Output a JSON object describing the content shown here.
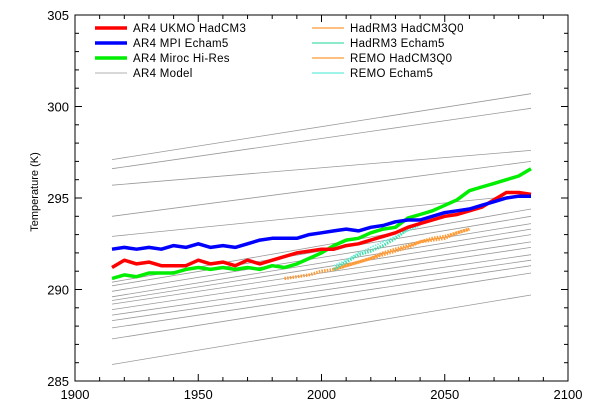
{
  "chart_data": {
    "type": "line",
    "title": "",
    "xlabel": "",
    "ylabel": "Temperature (K)",
    "xlim": [
      1900,
      2100
    ],
    "ylim": [
      285,
      305
    ],
    "xticks": [
      1900,
      1950,
      2000,
      2050,
      2100
    ],
    "yticks": [
      285,
      290,
      295,
      300,
      305
    ],
    "grid": false,
    "legend_position": "top-left, two columns inside plot",
    "series": [
      {
        "name": "AR4 UKMO HadCM3",
        "color": "#ff0000",
        "style": "solid-thick",
        "x": [
          1915,
          1920,
          1925,
          1930,
          1935,
          1940,
          1945,
          1950,
          1955,
          1960,
          1965,
          1970,
          1975,
          1980,
          1985,
          1990,
          1995,
          2000,
          2005,
          2010,
          2015,
          2020,
          2025,
          2030,
          2035,
          2040,
          2045,
          2050,
          2055,
          2060,
          2065,
          2070,
          2075,
          2080,
          2085
        ],
        "y": [
          291.2,
          291.6,
          291.4,
          291.5,
          291.3,
          291.3,
          291.3,
          291.6,
          291.4,
          291.5,
          291.3,
          291.6,
          291.4,
          291.6,
          291.8,
          292.0,
          292.1,
          292.2,
          292.2,
          292.4,
          292.5,
          292.7,
          292.9,
          293.1,
          293.4,
          293.6,
          293.8,
          294.0,
          294.1,
          294.3,
          294.5,
          294.9,
          295.3,
          295.3,
          295.2
        ]
      },
      {
        "name": "AR4 MPI Echam5",
        "color": "#0000ff",
        "style": "solid-thick",
        "x": [
          1915,
          1920,
          1925,
          1930,
          1935,
          1940,
          1945,
          1950,
          1955,
          1960,
          1965,
          1970,
          1975,
          1980,
          1985,
          1990,
          1995,
          2000,
          2005,
          2010,
          2015,
          2020,
          2025,
          2030,
          2035,
          2040,
          2045,
          2050,
          2055,
          2060,
          2065,
          2070,
          2075,
          2080,
          2085
        ],
        "y": [
          292.2,
          292.3,
          292.2,
          292.3,
          292.2,
          292.4,
          292.3,
          292.5,
          292.3,
          292.4,
          292.3,
          292.5,
          292.7,
          292.8,
          292.8,
          292.8,
          293.0,
          293.1,
          293.2,
          293.3,
          293.2,
          293.4,
          293.5,
          293.7,
          293.8,
          293.8,
          294.0,
          294.2,
          294.3,
          294.4,
          294.6,
          294.8,
          295.0,
          295.1,
          295.1
        ]
      },
      {
        "name": "AR4 Miroc Hi-Res",
        "color": "#00ee00",
        "style": "solid-thick",
        "x": [
          1915,
          1920,
          1925,
          1930,
          1935,
          1940,
          1945,
          1950,
          1955,
          1960,
          1965,
          1970,
          1975,
          1980,
          1985,
          1990,
          1995,
          2000,
          2005,
          2010,
          2015,
          2020,
          2025,
          2030,
          2035,
          2040,
          2045,
          2050,
          2055,
          2060,
          2065,
          2070,
          2075,
          2080,
          2085
        ],
        "y": [
          290.6,
          290.8,
          290.7,
          290.9,
          290.9,
          290.9,
          291.1,
          291.2,
          291.1,
          291.2,
          291.1,
          291.2,
          291.1,
          291.3,
          291.2,
          291.4,
          291.7,
          292.0,
          292.4,
          292.7,
          292.8,
          293.1,
          293.3,
          293.4,
          293.9,
          294.1,
          294.3,
          294.6,
          294.9,
          295.4,
          295.6,
          295.8,
          296.0,
          296.2,
          296.6
        ]
      },
      {
        "name": "AR4 Model",
        "color": "#999999",
        "style": "thin",
        "lines": [
          {
            "x": [
              1915,
              2085
            ],
            "y": [
              297.1,
              300.7
            ]
          },
          {
            "x": [
              1915,
              2085
            ],
            "y": [
              296.6,
              299.9
            ]
          },
          {
            "x": [
              1915,
              2085
            ],
            "y": [
              295.7,
              297.6
            ]
          },
          {
            "x": [
              1915,
              2085
            ],
            "y": [
              294.0,
              297.0
            ]
          },
          {
            "x": [
              1915,
              2085
            ],
            "y": [
              292.9,
              295.2
            ]
          },
          {
            "x": [
              1915,
              2085
            ],
            "y": [
              290.4,
              294.4
            ]
          },
          {
            "x": [
              1915,
              2085
            ],
            "y": [
              290.2,
              294.0
            ]
          },
          {
            "x": [
              1915,
              2085
            ],
            "y": [
              289.9,
              293.6
            ]
          },
          {
            "x": [
              1915,
              2085
            ],
            "y": [
              289.6,
              293.3
            ]
          },
          {
            "x": [
              1915,
              2085
            ],
            "y": [
              289.4,
              293.0
            ]
          },
          {
            "x": [
              1915,
              2085
            ],
            "y": [
              289.2,
              292.6
            ]
          },
          {
            "x": [
              1915,
              2085
            ],
            "y": [
              288.9,
              292.3
            ]
          },
          {
            "x": [
              1915,
              2085
            ],
            "y": [
              288.6,
              291.9
            ]
          },
          {
            "x": [
              1915,
              2085
            ],
            "y": [
              288.3,
              291.6
            ]
          },
          {
            "x": [
              1915,
              2085
            ],
            "y": [
              287.9,
              291.3
            ]
          },
          {
            "x": [
              1915,
              2085
            ],
            "y": [
              287.3,
              290.9
            ]
          },
          {
            "x": [
              1915,
              2085
            ],
            "y": [
              285.9,
              289.7
            ]
          }
        ]
      },
      {
        "name": "HadRM3 HadCM3Q0",
        "color": "#ff9933",
        "style": "dotted-thick",
        "x": [
          1985,
          1990,
          1995,
          2000,
          2005,
          2010,
          2015,
          2020,
          2025,
          2030,
          2035,
          2040,
          2045,
          2050,
          2055,
          2060
        ],
        "y": [
          290.6,
          290.7,
          290.8,
          291.0,
          291.1,
          291.3,
          291.5,
          291.7,
          291.9,
          292.1,
          292.3,
          292.6,
          292.7,
          292.8,
          293.1,
          293.3
        ]
      },
      {
        "name": "HadRM3 Echam5",
        "color": "#44ddaa",
        "style": "dotted-thick",
        "x": [
          2005,
          2010,
          2015,
          2020,
          2025,
          2030,
          2035,
          2040
        ],
        "y": [
          291.1,
          291.5,
          291.9,
          292.1,
          292.4,
          292.8,
          293.3,
          293.6
        ]
      },
      {
        "name": "REMO HadCM3Q0",
        "color": "#ff9933",
        "style": "dotted-thick",
        "x": [
          2005,
          2010,
          2015,
          2020,
          2025,
          2030,
          2035,
          2040,
          2045,
          2050,
          2055,
          2060
        ],
        "y": [
          291.1,
          291.3,
          291.5,
          291.7,
          292.0,
          292.2,
          292.4,
          292.6,
          292.8,
          292.9,
          293.1,
          293.3
        ]
      },
      {
        "name": "REMO Echam5",
        "color": "#66eedd",
        "style": "dotted-thin",
        "x": [
          2005,
          2010,
          2015,
          2020,
          2025,
          2030,
          2035,
          2040
        ],
        "y": [
          291.3,
          291.6,
          292.0,
          292.3,
          292.6,
          292.9,
          293.2,
          293.5
        ]
      }
    ],
    "legend": [
      {
        "label": "AR4 UKMO HadCM3",
        "color": "#ff0000",
        "style": "solid-thick"
      },
      {
        "label": "AR4 MPI Echam5",
        "color": "#0000ff",
        "style": "solid-thick"
      },
      {
        "label": "AR4 Miroc Hi-Res",
        "color": "#00ee00",
        "style": "solid-thick"
      },
      {
        "label": "AR4 Model",
        "color": "#999999",
        "style": "thin"
      },
      {
        "label": "HadRM3 HadCM3Q0",
        "color": "#ff9933",
        "style": "solid-thin"
      },
      {
        "label": "HadRM3 Echam5",
        "color": "#44ddaa",
        "style": "solid-thin"
      },
      {
        "label": "REMO HadCM3Q0",
        "color": "#ff9933",
        "style": "solid-thin"
      },
      {
        "label": "REMO Echam5",
        "color": "#66eedd",
        "style": "solid-thin"
      }
    ]
  }
}
